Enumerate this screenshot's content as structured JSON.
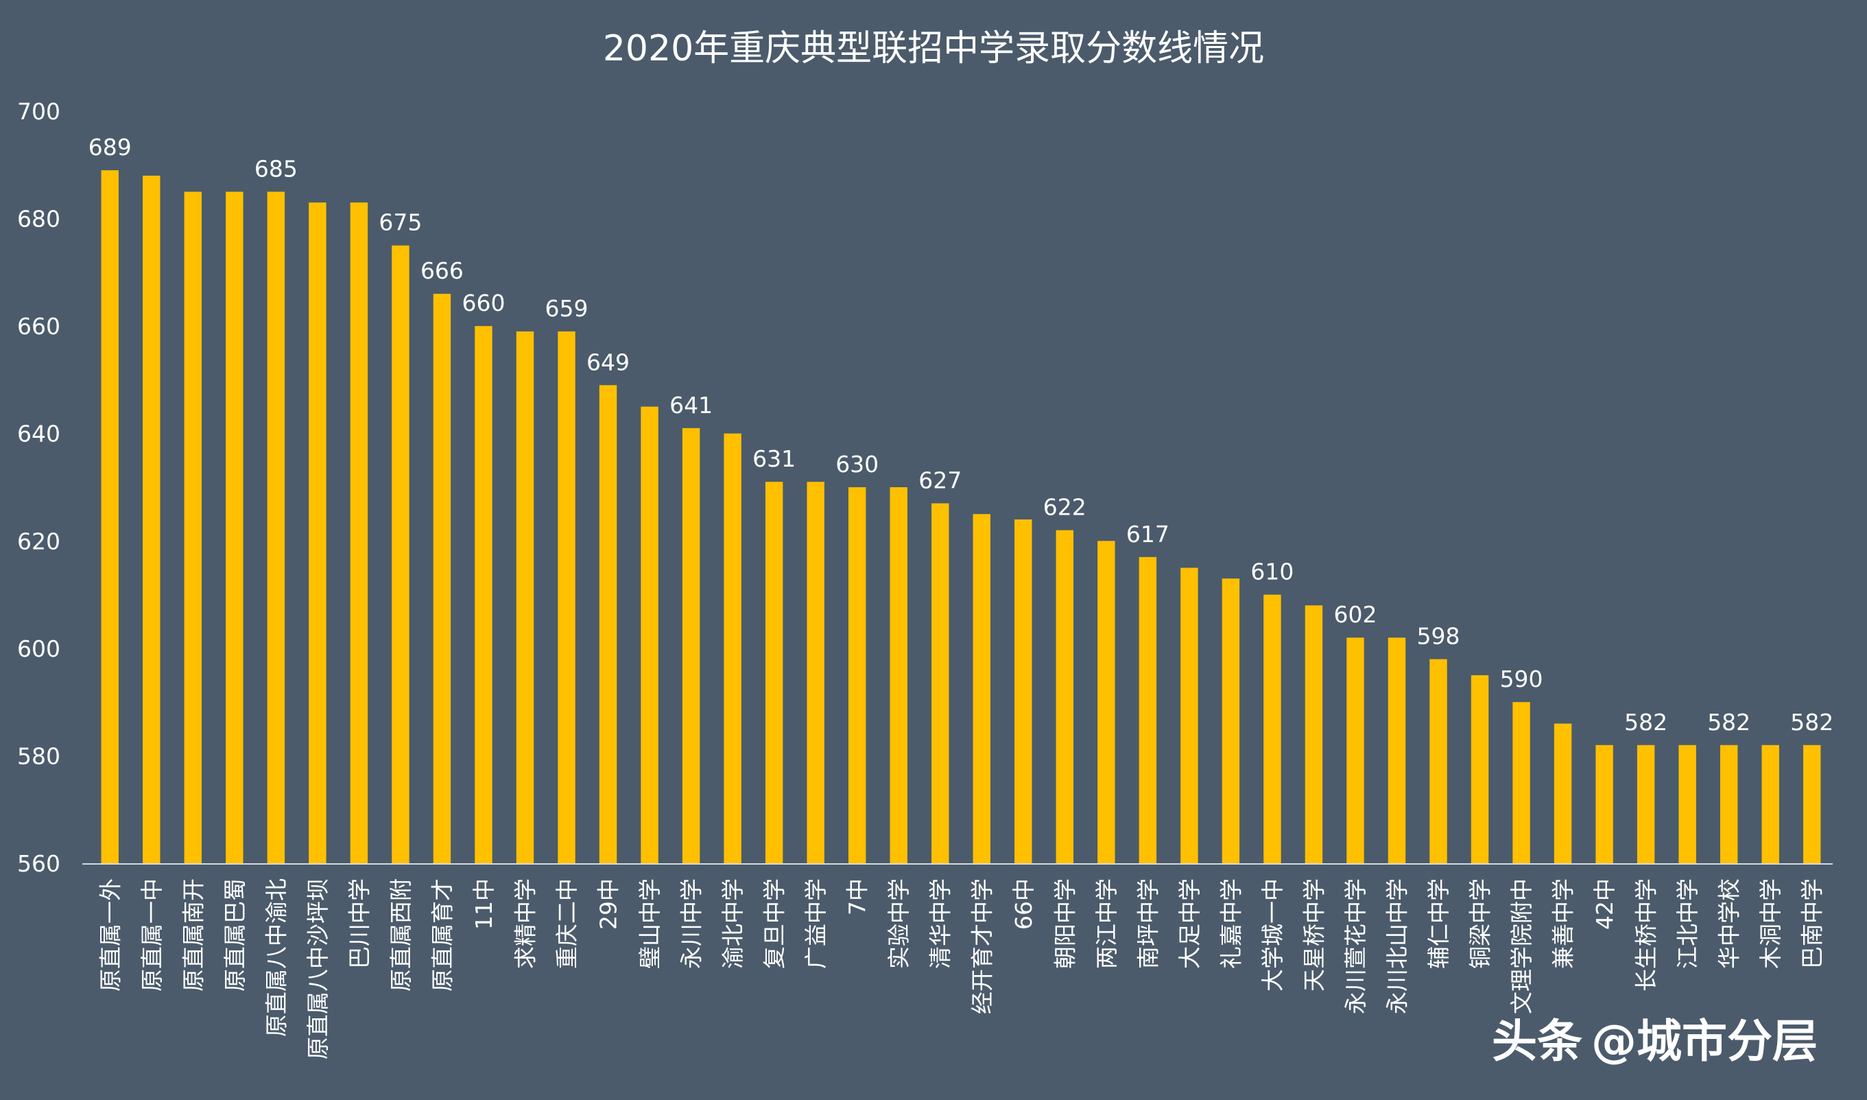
{
  "chart_data": {
    "type": "bar",
    "title": "2020年重庆典型联招中学录取分数线情况",
    "xlabel": "",
    "ylabel": "",
    "ylim": [
      560,
      700
    ],
    "yticks": [
      560,
      580,
      600,
      620,
      640,
      660,
      680,
      700
    ],
    "bar_color": "#ffc000",
    "background_color": "#4b5b6b",
    "grid": false,
    "legend": "none",
    "categories": [
      "原直属一外",
      "原直属一中",
      "原直属南开",
      "原直属巴蜀",
      "原直属八中渝北",
      "原直属八中沙坪坝",
      "巴川中学",
      "原直属西附",
      "原直属育才",
      "11中",
      "求精中学",
      "重庆二中",
      "29中",
      "璧山中学",
      "永川中学",
      "渝北中学",
      "复旦中学",
      "广益中学",
      "7中",
      "实验中学",
      "清华中学",
      "经开育才中学",
      "66中",
      "朝阳中学",
      "两江中学",
      "南坪中学",
      "大足中学",
      "礼嘉中学",
      "大学城一中",
      "天星桥中学",
      "永川萱花中学",
      "永川北山中学",
      "辅仁中学",
      "铜梁中学",
      "文理学院附中",
      "兼善中学",
      "42中",
      "长生桥中学",
      "江北中学",
      "华中学校",
      "木洞中学",
      "巴南中学"
    ],
    "values": [
      689,
      688,
      685,
      685,
      685,
      683,
      683,
      675,
      666,
      660,
      659,
      659,
      649,
      645,
      641,
      640,
      631,
      631,
      630,
      630,
      627,
      625,
      624,
      622,
      620,
      617,
      615,
      613,
      610,
      608,
      602,
      602,
      598,
      595,
      590,
      586,
      582,
      582,
      582,
      582,
      582,
      582
    ],
    "data_labels": [
      {
        "index": 0,
        "text": "689"
      },
      {
        "index": 4,
        "text": "685"
      },
      {
        "index": 7,
        "text": "675"
      },
      {
        "index": 8,
        "text": "666"
      },
      {
        "index": 9,
        "text": "660"
      },
      {
        "index": 11,
        "text": "659"
      },
      {
        "index": 12,
        "text": "649"
      },
      {
        "index": 14,
        "text": "641"
      },
      {
        "index": 16,
        "text": "631"
      },
      {
        "index": 18,
        "text": "630"
      },
      {
        "index": 20,
        "text": "627"
      },
      {
        "index": 23,
        "text": "622"
      },
      {
        "index": 25,
        "text": "617"
      },
      {
        "index": 28,
        "text": "610"
      },
      {
        "index": 30,
        "text": "602"
      },
      {
        "index": 32,
        "text": "598"
      },
      {
        "index": 34,
        "text": "590"
      },
      {
        "index": 37,
        "text": "582"
      },
      {
        "index": 39,
        "text": "582"
      },
      {
        "index": 41,
        "text": "582"
      }
    ]
  },
  "watermark": {
    "brand": "头条",
    "handle": "@城市分层"
  }
}
